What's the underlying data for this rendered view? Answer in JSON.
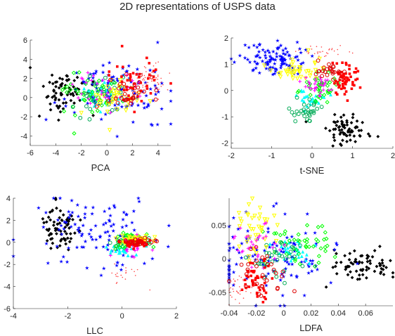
{
  "title": "2D representations of USPS data",
  "class_colors": [
    "#000000",
    "#0000ff",
    "#00ffff",
    "#00ff00",
    "#00aa55",
    "#ffff00",
    "#ff00ff",
    "#ff0000",
    "#dd0000",
    "#ff4444"
  ],
  "class_markers": [
    "diamond",
    "star",
    "triangle-up",
    "diamond-open",
    "circle-open",
    "triangle-down",
    "plus",
    "square",
    "circle-open",
    "dot"
  ],
  "chart_data": [
    {
      "type": "scatter",
      "xlabel": "PCA",
      "xlim": [
        -6,
        5
      ],
      "ylim": [
        -5,
        6
      ],
      "xticks": [
        -6,
        -4,
        -2,
        0,
        2,
        4
      ],
      "yticks": [
        -4,
        -2,
        0,
        2,
        4,
        6
      ],
      "clusters": [
        {
          "class": 0,
          "cx": -3.2,
          "cy": 0.6,
          "sx": 0.9,
          "sy": 1.2,
          "n": 70
        },
        {
          "class": 1,
          "cx": 0.8,
          "cy": 0.5,
          "sx": 1.9,
          "sy": 1.6,
          "n": 120
        },
        {
          "class": 2,
          "cx": -0.5,
          "cy": 0.3,
          "sx": 1.0,
          "sy": 0.8,
          "n": 30
        },
        {
          "class": 3,
          "cx": -1.2,
          "cy": 0.5,
          "sx": 1.1,
          "sy": 0.9,
          "n": 45
        },
        {
          "class": 4,
          "cx": -0.2,
          "cy": 0.2,
          "sx": 1.2,
          "sy": 1.0,
          "n": 35
        },
        {
          "class": 5,
          "cx": 0.5,
          "cy": 0.0,
          "sx": 1.3,
          "sy": 1.0,
          "n": 40
        },
        {
          "class": 6,
          "cx": 0.0,
          "cy": 0.8,
          "sx": 1.3,
          "sy": 1.0,
          "n": 30
        },
        {
          "class": 7,
          "cx": 2.2,
          "cy": 1.2,
          "sx": 1.2,
          "sy": 1.2,
          "n": 45
        },
        {
          "class": 8,
          "cx": 1.8,
          "cy": 1.0,
          "sx": 1.0,
          "sy": 1.0,
          "n": 30
        },
        {
          "class": 9,
          "cx": 3.5,
          "cy": 1.8,
          "sx": 0.7,
          "sy": 1.0,
          "n": 50
        }
      ]
    },
    {
      "type": "scatter",
      "xlabel": "t-SNE",
      "xlim": [
        -2,
        2
      ],
      "ylim": [
        -2.2,
        2
      ],
      "xticks": [
        -2,
        -1,
        0,
        1,
        2
      ],
      "yticks": [
        -2,
        -1,
        0,
        1,
        2
      ],
      "clusters": [
        {
          "class": 0,
          "cx": 0.9,
          "cy": -1.5,
          "sx": 0.3,
          "sy": 0.3,
          "n": 70
        },
        {
          "class": 1,
          "cx": -0.9,
          "cy": 1.2,
          "sx": 0.4,
          "sy": 0.3,
          "n": 110
        },
        {
          "class": 2,
          "cx": 0.0,
          "cy": -0.3,
          "sx": 0.2,
          "sy": 0.2,
          "n": 25
        },
        {
          "class": 3,
          "cx": 0.2,
          "cy": 0.1,
          "sx": 0.2,
          "sy": 0.3,
          "n": 45
        },
        {
          "class": 4,
          "cx": -0.1,
          "cy": -0.8,
          "sx": 0.2,
          "sy": 0.2,
          "n": 30
        },
        {
          "class": 5,
          "cx": -0.4,
          "cy": 0.8,
          "sx": 0.3,
          "sy": 0.2,
          "n": 40
        },
        {
          "class": 6,
          "cx": 0.1,
          "cy": 0.2,
          "sx": 0.2,
          "sy": 0.2,
          "n": 30
        },
        {
          "class": 7,
          "cx": 0.8,
          "cy": 0.4,
          "sx": 0.15,
          "sy": 0.3,
          "n": 60
        },
        {
          "class": 8,
          "cx": 0.4,
          "cy": 0.7,
          "sx": 0.2,
          "sy": 0.2,
          "n": 25
        },
        {
          "class": 9,
          "cx": 0.3,
          "cy": 1.5,
          "sx": 0.3,
          "sy": 0.1,
          "n": 30
        }
      ]
    },
    {
      "type": "scatter",
      "xlabel": "LLC",
      "xlim": [
        -4,
        2
      ],
      "ylim": [
        -6,
        4
      ],
      "xticks": [
        -4,
        -2,
        0,
        2
      ],
      "yticks": [
        -6,
        -4,
        -2,
        0,
        2,
        4
      ],
      "clusters": [
        {
          "class": 0,
          "cx": -2.3,
          "cy": 1.3,
          "sx": 0.35,
          "sy": 1.0,
          "n": 70
        },
        {
          "class": 1,
          "cx": -1.0,
          "cy": 0.8,
          "sx": 1.2,
          "sy": 1.8,
          "n": 110
        },
        {
          "class": 2,
          "cx": 0.0,
          "cy": -0.5,
          "sx": 0.3,
          "sy": 0.3,
          "n": 25
        },
        {
          "class": 3,
          "cx": 0.2,
          "cy": 0.1,
          "sx": 0.3,
          "sy": 0.3,
          "n": 45
        },
        {
          "class": 4,
          "cx": 0.4,
          "cy": 0.0,
          "sx": 0.3,
          "sy": 0.2,
          "n": 30
        },
        {
          "class": 5,
          "cx": 0.5,
          "cy": 0.2,
          "sx": 0.3,
          "sy": 0.2,
          "n": 40
        },
        {
          "class": 6,
          "cx": 0.3,
          "cy": -0.4,
          "sx": 0.3,
          "sy": 0.4,
          "n": 25
        },
        {
          "class": 7,
          "cx": 0.5,
          "cy": -0.1,
          "sx": 0.3,
          "sy": 0.2,
          "n": 40
        },
        {
          "class": 8,
          "cx": 0.6,
          "cy": 0.0,
          "sx": 0.3,
          "sy": 0.2,
          "n": 20
        },
        {
          "class": 9,
          "cx": 0.0,
          "cy": -2.8,
          "sx": 0.4,
          "sy": 0.5,
          "n": 20
        }
      ]
    },
    {
      "type": "scatter",
      "xlabel": "LDFA",
      "xlim": [
        -0.04,
        0.08
      ],
      "ylim": [
        -0.07,
        0.09
      ],
      "xticks": [
        -0.04,
        -0.02,
        0,
        0.02,
        0.04,
        0.06
      ],
      "yticks": [
        -0.05,
        0,
        0.05
      ],
      "clusters": [
        {
          "class": 0,
          "cx": 0.058,
          "cy": -0.01,
          "sx": 0.012,
          "sy": 0.012,
          "n": 70
        },
        {
          "class": 1,
          "cx": -0.01,
          "cy": 0.0,
          "sx": 0.025,
          "sy": 0.03,
          "n": 120
        },
        {
          "class": 2,
          "cx": 0.008,
          "cy": 0.01,
          "sx": 0.008,
          "sy": 0.01,
          "n": 30
        },
        {
          "class": 3,
          "cx": 0.01,
          "cy": 0.02,
          "sx": 0.012,
          "sy": 0.015,
          "n": 45
        },
        {
          "class": 4,
          "cx": -0.005,
          "cy": 0.0,
          "sx": 0.01,
          "sy": 0.015,
          "n": 35
        },
        {
          "class": 5,
          "cx": -0.02,
          "cy": 0.04,
          "sx": 0.006,
          "sy": 0.02,
          "n": 40
        },
        {
          "class": 6,
          "cx": -0.02,
          "cy": 0.02,
          "sx": 0.01,
          "sy": 0.015,
          "n": 30
        },
        {
          "class": 7,
          "cx": -0.02,
          "cy": -0.03,
          "sx": 0.006,
          "sy": 0.015,
          "n": 45
        },
        {
          "class": 8,
          "cx": -0.015,
          "cy": -0.02,
          "sx": 0.01,
          "sy": 0.02,
          "n": 30
        },
        {
          "class": 9,
          "cx": -0.032,
          "cy": -0.045,
          "sx": 0.006,
          "sy": 0.01,
          "n": 40
        }
      ]
    }
  ]
}
